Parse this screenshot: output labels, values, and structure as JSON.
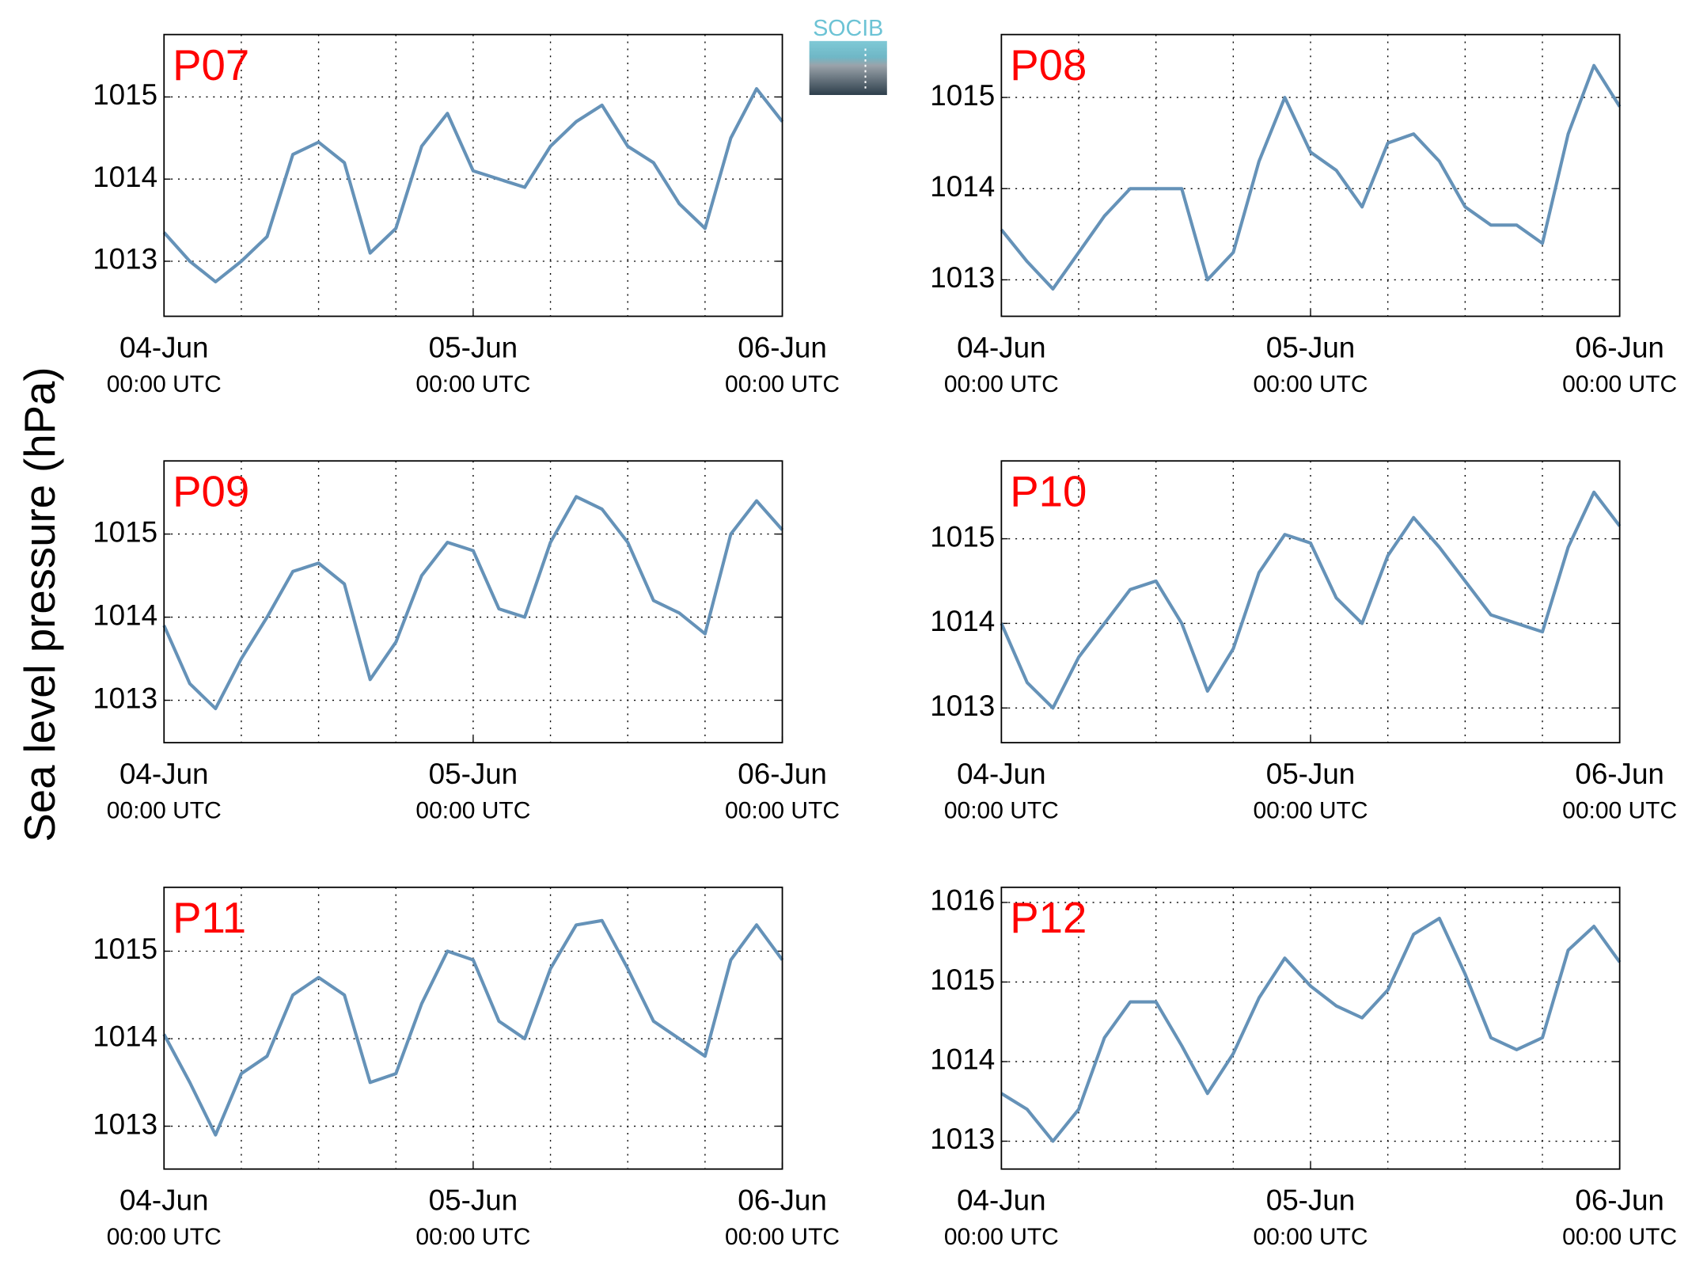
{
  "ylabel": "Sea level pressure (hPa)",
  "logo": "SOCIB",
  "chart_data": [
    {
      "type": "line",
      "title": "P07",
      "color": "#6592b8",
      "x": [
        "04-Jun 00:00",
        "04-Jun 02:00",
        "04-Jun 04:00",
        "04-Jun 06:00",
        "04-Jun 08:00",
        "04-Jun 10:00",
        "04-Jun 12:00",
        "04-Jun 14:00",
        "04-Jun 16:00",
        "04-Jun 18:00",
        "04-Jun 20:00",
        "04-Jun 22:00",
        "05-Jun 00:00",
        "05-Jun 02:00",
        "05-Jun 04:00",
        "05-Jun 06:00",
        "05-Jun 08:00",
        "05-Jun 10:00",
        "05-Jun 12:00",
        "05-Jun 14:00",
        "05-Jun 16:00",
        "05-Jun 18:00",
        "05-Jun 20:00",
        "05-Jun 22:00",
        "06-Jun 00:00"
      ],
      "values": [
        1013.35,
        1013.0,
        1012.75,
        1013.0,
        1013.3,
        1014.3,
        1014.45,
        1014.2,
        1013.1,
        1013.4,
        1014.4,
        1014.8,
        1014.1,
        1014.0,
        1013.9,
        1014.4,
        1014.7,
        1014.9,
        1014.4,
        1014.2,
        1013.7,
        1013.4,
        1014.5,
        1015.1,
        1014.7
      ],
      "xlim": [
        "04-Jun 00:00",
        "06-Jun 00:00"
      ],
      "xticks": [
        {
          "value": "04-Jun 00:00",
          "label": "04-Jun",
          "sublabel": "00:00 UTC"
        },
        {
          "value": "05-Jun 00:00",
          "label": "05-Jun",
          "sublabel": "00:00 UTC"
        },
        {
          "value": "06-Jun 00:00",
          "label": "06-Jun",
          "sublabel": "00:00 UTC"
        }
      ],
      "xgrid": [
        "04-Jun 06:00",
        "04-Jun 12:00",
        "04-Jun 18:00",
        "05-Jun 00:00",
        "05-Jun 06:00",
        "05-Jun 12:00",
        "05-Jun 18:00"
      ],
      "ylim": [
        1012.33,
        1015.76
      ],
      "yticks": [
        1013,
        1014,
        1015
      ],
      "grid": true
    },
    {
      "type": "line",
      "title": "P08",
      "color": "#6592b8",
      "x": [
        "04-Jun 00:00",
        "04-Jun 02:00",
        "04-Jun 04:00",
        "04-Jun 06:00",
        "04-Jun 08:00",
        "04-Jun 10:00",
        "04-Jun 12:00",
        "04-Jun 14:00",
        "04-Jun 16:00",
        "04-Jun 18:00",
        "04-Jun 20:00",
        "04-Jun 22:00",
        "05-Jun 00:00",
        "05-Jun 02:00",
        "05-Jun 04:00",
        "05-Jun 06:00",
        "05-Jun 08:00",
        "05-Jun 10:00",
        "05-Jun 12:00",
        "05-Jun 14:00",
        "05-Jun 16:00",
        "05-Jun 18:00",
        "05-Jun 20:00",
        "05-Jun 22:00",
        "06-Jun 00:00"
      ],
      "values": [
        1013.55,
        1013.2,
        1012.9,
        1013.3,
        1013.7,
        1014.0,
        1014.0,
        1014.0,
        1013.0,
        1013.3,
        1014.3,
        1015.0,
        1014.4,
        1014.2,
        1013.8,
        1014.5,
        1014.6,
        1014.3,
        1013.8,
        1013.6,
        1013.6,
        1013.4,
        1014.6,
        1015.35,
        1014.9
      ],
      "xlim": [
        "04-Jun 00:00",
        "06-Jun 00:00"
      ],
      "xticks": [
        {
          "value": "04-Jun 00:00",
          "label": "04-Jun",
          "sublabel": "00:00 UTC"
        },
        {
          "value": "05-Jun 00:00",
          "label": "05-Jun",
          "sublabel": "00:00 UTC"
        },
        {
          "value": "06-Jun 00:00",
          "label": "06-Jun",
          "sublabel": "00:00 UTC"
        }
      ],
      "xgrid": [
        "04-Jun 06:00",
        "04-Jun 12:00",
        "04-Jun 18:00",
        "05-Jun 00:00",
        "05-Jun 06:00",
        "05-Jun 12:00",
        "05-Jun 18:00"
      ],
      "ylim": [
        1012.6,
        1015.69
      ],
      "yticks": [
        1013,
        1014,
        1015
      ],
      "grid": true
    },
    {
      "type": "line",
      "title": "P09",
      "color": "#6592b8",
      "x": [
        "04-Jun 00:00",
        "04-Jun 02:00",
        "04-Jun 04:00",
        "04-Jun 06:00",
        "04-Jun 08:00",
        "04-Jun 10:00",
        "04-Jun 12:00",
        "04-Jun 14:00",
        "04-Jun 16:00",
        "04-Jun 18:00",
        "04-Jun 20:00",
        "04-Jun 22:00",
        "05-Jun 00:00",
        "05-Jun 02:00",
        "05-Jun 04:00",
        "05-Jun 06:00",
        "05-Jun 08:00",
        "05-Jun 10:00",
        "05-Jun 12:00",
        "05-Jun 14:00",
        "05-Jun 16:00",
        "05-Jun 18:00",
        "05-Jun 20:00",
        "05-Jun 22:00",
        "06-Jun 00:00"
      ],
      "values": [
        1013.9,
        1013.2,
        1012.9,
        1013.5,
        1014.0,
        1014.55,
        1014.65,
        1014.4,
        1013.25,
        1013.7,
        1014.5,
        1014.9,
        1014.8,
        1014.1,
        1014.0,
        1014.9,
        1015.45,
        1015.3,
        1014.9,
        1014.2,
        1014.05,
        1013.8,
        1015.0,
        1015.4,
        1015.05
      ],
      "xlim": [
        "04-Jun 00:00",
        "06-Jun 00:00"
      ],
      "xticks": [
        {
          "value": "04-Jun 00:00",
          "label": "04-Jun",
          "sublabel": "00:00 UTC"
        },
        {
          "value": "05-Jun 00:00",
          "label": "05-Jun",
          "sublabel": "00:00 UTC"
        },
        {
          "value": "06-Jun 00:00",
          "label": "06-Jun",
          "sublabel": "00:00 UTC"
        }
      ],
      "xgrid": [
        "04-Jun 06:00",
        "04-Jun 12:00",
        "04-Jun 18:00",
        "05-Jun 00:00",
        "05-Jun 06:00",
        "05-Jun 12:00",
        "05-Jun 18:00"
      ],
      "ylim": [
        1012.49,
        1015.88
      ],
      "yticks": [
        1013,
        1014,
        1015
      ],
      "grid": true
    },
    {
      "type": "line",
      "title": "P10",
      "color": "#6592b8",
      "x": [
        "04-Jun 00:00",
        "04-Jun 02:00",
        "04-Jun 04:00",
        "04-Jun 06:00",
        "04-Jun 08:00",
        "04-Jun 10:00",
        "04-Jun 12:00",
        "04-Jun 14:00",
        "04-Jun 16:00",
        "04-Jun 18:00",
        "04-Jun 20:00",
        "04-Jun 22:00",
        "05-Jun 00:00",
        "05-Jun 02:00",
        "05-Jun 04:00",
        "05-Jun 06:00",
        "05-Jun 08:00",
        "05-Jun 10:00",
        "05-Jun 12:00",
        "05-Jun 14:00",
        "05-Jun 16:00",
        "05-Jun 18:00",
        "05-Jun 20:00",
        "05-Jun 22:00",
        "06-Jun 00:00"
      ],
      "values": [
        1014.0,
        1013.3,
        1013.0,
        1013.6,
        1014.0,
        1014.4,
        1014.5,
        1014.0,
        1013.2,
        1013.7,
        1014.6,
        1015.05,
        1014.95,
        1014.3,
        1014.0,
        1014.8,
        1015.25,
        1014.9,
        1014.5,
        1014.1,
        1014.0,
        1013.9,
        1014.9,
        1015.55,
        1015.15
      ],
      "xlim": [
        "04-Jun 00:00",
        "06-Jun 00:00"
      ],
      "xticks": [
        {
          "value": "04-Jun 00:00",
          "label": "04-Jun",
          "sublabel": "00:00 UTC"
        },
        {
          "value": "05-Jun 00:00",
          "label": "05-Jun",
          "sublabel": "00:00 UTC"
        },
        {
          "value": "06-Jun 00:00",
          "label": "06-Jun",
          "sublabel": "00:00 UTC"
        }
      ],
      "xgrid": [
        "04-Jun 06:00",
        "04-Jun 12:00",
        "04-Jun 18:00",
        "05-Jun 00:00",
        "05-Jun 06:00",
        "05-Jun 12:00",
        "05-Jun 18:00"
      ],
      "ylim": [
        1012.59,
        1015.92
      ],
      "yticks": [
        1013,
        1014,
        1015
      ],
      "grid": true
    },
    {
      "type": "line",
      "title": "P11",
      "color": "#6592b8",
      "x": [
        "04-Jun 00:00",
        "04-Jun 02:00",
        "04-Jun 04:00",
        "04-Jun 06:00",
        "04-Jun 08:00",
        "04-Jun 10:00",
        "04-Jun 12:00",
        "04-Jun 14:00",
        "04-Jun 16:00",
        "04-Jun 18:00",
        "04-Jun 20:00",
        "04-Jun 22:00",
        "05-Jun 00:00",
        "05-Jun 02:00",
        "05-Jun 04:00",
        "05-Jun 06:00",
        "05-Jun 08:00",
        "05-Jun 10:00",
        "05-Jun 12:00",
        "05-Jun 14:00",
        "05-Jun 16:00",
        "05-Jun 18:00",
        "05-Jun 20:00",
        "05-Jun 22:00",
        "06-Jun 00:00"
      ],
      "values": [
        1014.05,
        1013.5,
        1012.9,
        1013.6,
        1013.8,
        1014.5,
        1014.7,
        1014.5,
        1013.5,
        1013.6,
        1014.4,
        1015.0,
        1014.9,
        1014.2,
        1014.0,
        1014.8,
        1015.3,
        1015.35,
        1014.8,
        1014.2,
        1014.0,
        1013.8,
        1014.9,
        1015.3,
        1014.9
      ],
      "xlim": [
        "04-Jun 00:00",
        "06-Jun 00:00"
      ],
      "xticks": [
        {
          "value": "04-Jun 00:00",
          "label": "04-Jun",
          "sublabel": "00:00 UTC"
        },
        {
          "value": "05-Jun 00:00",
          "label": "05-Jun",
          "sublabel": "00:00 UTC"
        },
        {
          "value": "06-Jun 00:00",
          "label": "06-Jun",
          "sublabel": "00:00 UTC"
        }
      ],
      "xgrid": [
        "04-Jun 06:00",
        "04-Jun 12:00",
        "04-Jun 18:00",
        "05-Jun 00:00",
        "05-Jun 06:00",
        "05-Jun 12:00",
        "05-Jun 18:00"
      ],
      "ylim": [
        1012.51,
        1015.73
      ],
      "yticks": [
        1013,
        1014,
        1015
      ],
      "grid": true
    },
    {
      "type": "line",
      "title": "P12",
      "color": "#6592b8",
      "x": [
        "04-Jun 00:00",
        "04-Jun 02:00",
        "04-Jun 04:00",
        "04-Jun 06:00",
        "04-Jun 08:00",
        "04-Jun 10:00",
        "04-Jun 12:00",
        "04-Jun 14:00",
        "04-Jun 16:00",
        "04-Jun 18:00",
        "04-Jun 20:00",
        "04-Jun 22:00",
        "05-Jun 00:00",
        "05-Jun 02:00",
        "05-Jun 04:00",
        "05-Jun 06:00",
        "05-Jun 08:00",
        "05-Jun 10:00",
        "05-Jun 12:00",
        "05-Jun 14:00",
        "05-Jun 16:00",
        "05-Jun 18:00",
        "05-Jun 20:00",
        "05-Jun 22:00",
        "06-Jun 00:00"
      ],
      "values": [
        1013.6,
        1013.4,
        1013.0,
        1013.4,
        1014.3,
        1014.75,
        1014.75,
        1014.2,
        1013.6,
        1014.1,
        1014.8,
        1015.3,
        1014.95,
        1014.7,
        1014.55,
        1014.9,
        1015.6,
        1015.8,
        1015.1,
        1014.3,
        1014.15,
        1014.3,
        1015.4,
        1015.7,
        1015.25
      ],
      "xlim": [
        "04-Jun 00:00",
        "06-Jun 00:00"
      ],
      "xticks": [
        {
          "value": "04-Jun 00:00",
          "label": "04-Jun",
          "sublabel": "00:00 UTC"
        },
        {
          "value": "05-Jun 00:00",
          "label": "05-Jun",
          "sublabel": "00:00 UTC"
        },
        {
          "value": "06-Jun 00:00",
          "label": "06-Jun",
          "sublabel": "00:00 UTC"
        }
      ],
      "xgrid": [
        "04-Jun 06:00",
        "04-Jun 12:00",
        "04-Jun 18:00",
        "05-Jun 00:00",
        "05-Jun 06:00",
        "05-Jun 12:00",
        "05-Jun 18:00"
      ],
      "ylim": [
        1012.65,
        1016.19
      ],
      "yticks": [
        1013,
        1014,
        1015,
        1016
      ],
      "grid": true
    }
  ]
}
